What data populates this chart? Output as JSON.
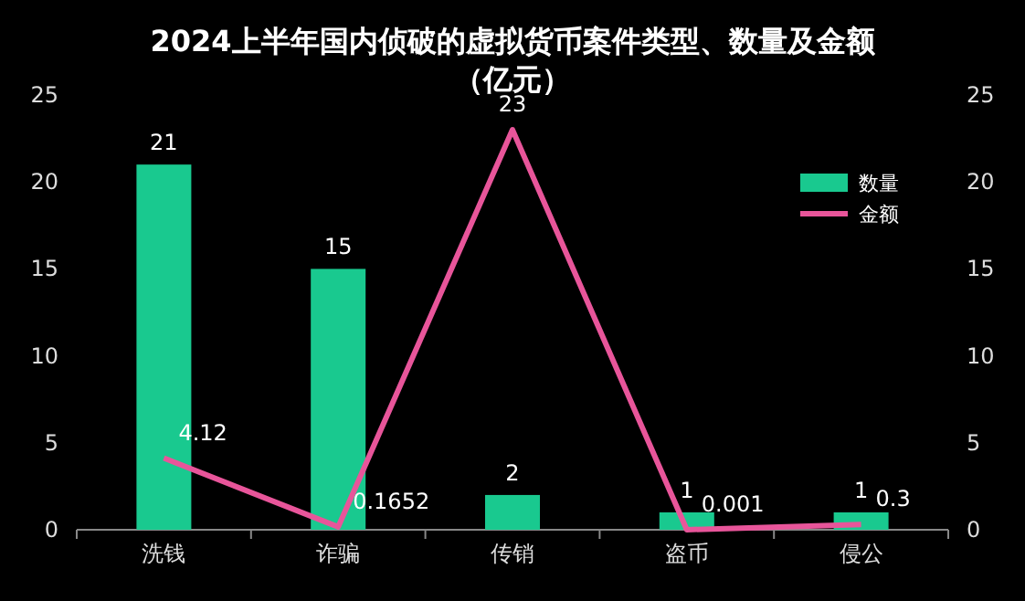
{
  "chart_data": {
    "type": "bar",
    "title": "2024上半年国内侦破的虚拟货币案件类型、数量及金额",
    "subtitle": "（亿元）",
    "categories": [
      "洗钱",
      "诈骗",
      "传销",
      "盗币",
      "侵公"
    ],
    "series": [
      {
        "name": "数量",
        "color": "#19c98f",
        "values": [
          21,
          15,
          2,
          1,
          1
        ]
      },
      {
        "name": "金额",
        "type": "line",
        "axis": "y2",
        "color": "#e8559a",
        "values": [
          4.12,
          0.1652,
          23,
          0.001,
          0.3
        ]
      }
    ],
    "ylim": [
      0,
      25
    ],
    "yticks": [
      0,
      5,
      10,
      15,
      20,
      25
    ],
    "y2lim": [
      0,
      25
    ],
    "y2ticks": [
      0,
      5,
      10,
      15,
      20,
      25
    ],
    "data_labels": true,
    "legend": "top right",
    "grid": false,
    "marker": "none",
    "line_style": "solid"
  }
}
